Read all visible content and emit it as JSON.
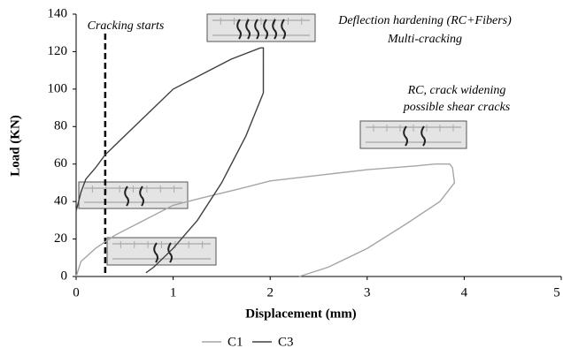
{
  "chart_data": {
    "type": "line",
    "xlabel": "Displacement (mm)",
    "ylabel": "Load (KN)",
    "xlim": [
      0,
      5
    ],
    "xticks": [
      0,
      1,
      2,
      3,
      4,
      5
    ],
    "ylim": [
      0,
      140
    ],
    "yticks": [
      0,
      20,
      40,
      60,
      80,
      100,
      120,
      140
    ],
    "cracking_x": 0.3,
    "annotations": [
      "Cracking starts",
      "Deflection hardening (RC+Fibers)",
      "Multi-cracking",
      "RC, crack widening",
      "possible shear cracks"
    ],
    "series": [
      {
        "name": "C1",
        "color": "#a6a6a6",
        "x": [
          0,
          0.05,
          0.2,
          0.4,
          0.7,
          1.0,
          1.3,
          1.7,
          2.0,
          2.5,
          3.0,
          3.5,
          3.7,
          3.85,
          3.88,
          3.9,
          3.75,
          3.4,
          3.0,
          2.6,
          2.3
        ],
        "values": [
          0,
          8,
          15,
          22,
          30,
          38,
          42,
          47,
          51,
          54,
          57,
          59,
          60,
          60,
          58,
          50,
          40,
          28,
          15,
          5,
          0
        ]
      },
      {
        "name": "C3",
        "color": "#404040",
        "x": [
          0,
          0.05,
          0.1,
          0.2,
          0.3,
          0.5,
          0.8,
          1.0,
          1.3,
          1.6,
          1.9,
          1.93,
          1.93,
          1.75,
          1.5,
          1.25,
          1.0,
          0.8,
          0.72
        ],
        "values": [
          35,
          45,
          52,
          58,
          65,
          75,
          90,
          100,
          108,
          116,
          122,
          122,
          98,
          75,
          50,
          30,
          15,
          5,
          2
        ]
      }
    ]
  }
}
